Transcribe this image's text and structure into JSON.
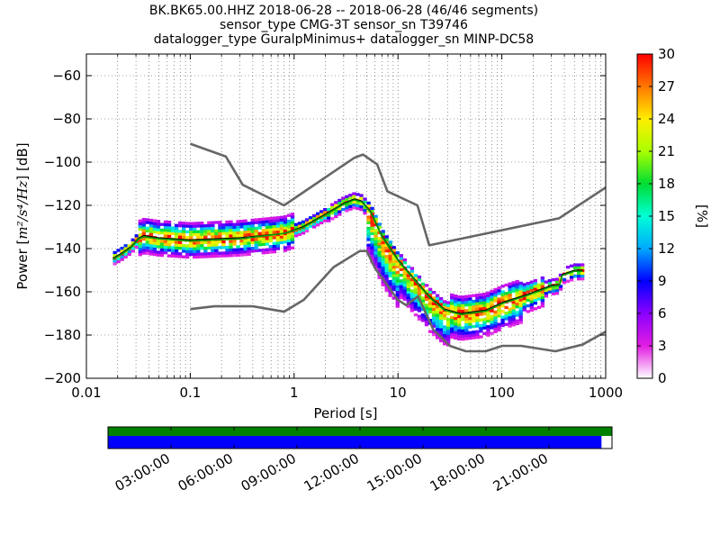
{
  "title_lines": [
    "BK.BK65.00.HHZ   2018-06-28 -- 2018-06-28  (46/46 segments)",
    "sensor_type CMG-3T sensor_sn T39746",
    "datalogger_type GuralpMinimus+ datalogger_sn MINP-DC58"
  ],
  "chart_data": [
    {
      "type": "heatmap",
      "subtype": "probabilistic-power-spectral-density",
      "xlabel": "Period [s]",
      "ylabel": "Power [m²/s⁴/Hz] [dB]",
      "ylabel_parts": {
        "prefix": "Power [",
        "math": "m²/s⁴/Hz",
        "suffix": "] [dB]"
      },
      "xscale": "log",
      "xlim": [
        0.01,
        1000
      ],
      "ylim": [
        -200,
        -50
      ],
      "xticks": [
        0.01,
        0.1,
        1,
        10,
        100,
        1000
      ],
      "xtick_labels": [
        "0.01",
        "0.1",
        "1",
        "10",
        "100",
        "1000"
      ],
      "yticks": [
        -200,
        -180,
        -160,
        -140,
        -120,
        -100,
        -80,
        -60
      ],
      "ytick_labels": [
        "−200",
        "−180",
        "−160",
        "−140",
        "−120",
        "−100",
        "−80",
        "−60"
      ],
      "grid": "dotted",
      "colorbar": {
        "label": "[%]",
        "min": 0,
        "max": 30,
        "ticks": [
          0,
          3,
          6,
          9,
          12,
          15,
          18,
          21,
          24,
          27,
          30
        ],
        "tick_labels": [
          "0",
          "3",
          "6",
          "9",
          "12",
          "15",
          "18",
          "21",
          "24",
          "27",
          "30"
        ],
        "colors": [
          "#ffffff",
          "#e21ce2",
          "#8a00ff",
          "#0000ff",
          "#00aaff",
          "#00ffd5",
          "#00dd33",
          "#aaff00",
          "#ffee00",
          "#ff7700",
          "#ff0000"
        ]
      },
      "series": [
        {
          "role": "noise-model-high",
          "color": "#666666",
          "points": [
            [
              0.1,
              -91.5
            ],
            [
              0.22,
              -97.4
            ],
            [
              0.32,
              -110.5
            ],
            [
              0.8,
              -120
            ],
            [
              3.8,
              -98
            ],
            [
              4.6,
              -96.5
            ],
            [
              6.3,
              -101
            ],
            [
              7.9,
              -113.5
            ],
            [
              15.4,
              -120
            ],
            [
              20,
              -138.5
            ],
            [
              354.8,
              -126
            ],
            [
              10000,
              -80
            ]
          ]
        },
        {
          "role": "noise-model-low",
          "color": "#666666",
          "points": [
            [
              0.1,
              -168
            ],
            [
              0.17,
              -166.7
            ],
            [
              0.4,
              -166.7
            ],
            [
              0.8,
              -169.2
            ],
            [
              1.24,
              -163.7
            ],
            [
              2.4,
              -148.6
            ],
            [
              4.3,
              -141.1
            ],
            [
              5,
              -141.1
            ],
            [
              6,
              -149
            ],
            [
              10,
              -163.8
            ],
            [
              12,
              -166.2
            ],
            [
              15.6,
              -162.1
            ],
            [
              21.9,
              -177.5
            ],
            [
              31.6,
              -185
            ],
            [
              45,
              -187.5
            ],
            [
              70,
              -187.5
            ],
            [
              101,
              -185
            ],
            [
              154,
              -185
            ],
            [
              328,
              -187.5
            ],
            [
              600,
              -184.4
            ],
            [
              10000,
              -151.5
            ]
          ]
        },
        {
          "role": "mean",
          "color": "#000000",
          "points": [
            [
              0.018,
              -144.5
            ],
            [
              0.022,
              -142
            ],
            [
              0.027,
              -139
            ],
            [
              0.032,
              -135
            ],
            [
              0.036,
              -134
            ],
            [
              0.05,
              -135
            ],
            [
              0.1,
              -136
            ],
            [
              0.3,
              -135
            ],
            [
              0.8,
              -133
            ],
            [
              1.2,
              -130
            ],
            [
              2,
              -124
            ],
            [
              3,
              -119
            ],
            [
              3.8,
              -117
            ],
            [
              4.5,
              -118
            ],
            [
              5.5,
              -123
            ],
            [
              7,
              -134
            ],
            [
              10,
              -145
            ],
            [
              15,
              -155
            ],
            [
              20,
              -162
            ],
            [
              28,
              -168
            ],
            [
              40,
              -170
            ],
            [
              70,
              -168.5
            ],
            [
              100,
              -165
            ],
            [
              180,
              -161
            ],
            [
              300,
              -157
            ],
            [
              360,
              -156.5
            ],
            [
              380,
              -152
            ],
            [
              500,
              -150
            ],
            [
              600,
              -150
            ]
          ]
        },
        {
          "role": "mode",
          "color": "#00a000",
          "points": [
            [
              0.018,
              -145
            ],
            [
              0.022,
              -142.5
            ],
            [
              0.027,
              -139.5
            ],
            [
              0.032,
              -135.5
            ],
            [
              0.036,
              -134.5
            ],
            [
              0.05,
              -135.5
            ],
            [
              0.1,
              -136.5
            ],
            [
              0.3,
              -135.5
            ],
            [
              0.8,
              -133
            ],
            [
              1.2,
              -130.5
            ],
            [
              2,
              -124.5
            ],
            [
              3,
              -119.5
            ],
            [
              3.8,
              -117.5
            ],
            [
              4.5,
              -118.5
            ],
            [
              5.5,
              -123.5
            ],
            [
              7,
              -134.5
            ],
            [
              10,
              -145.5
            ],
            [
              15,
              -155.5
            ],
            [
              20,
              -162.5
            ],
            [
              28,
              -168.5
            ],
            [
              40,
              -170.5
            ],
            [
              70,
              -169
            ],
            [
              100,
              -165.5
            ],
            [
              180,
              -161.5
            ],
            [
              300,
              -157.5
            ],
            [
              360,
              -157
            ],
            [
              380,
              -152.5
            ],
            [
              500,
              -150.5
            ],
            [
              600,
              -150.5
            ]
          ]
        }
      ]
    },
    {
      "type": "timeline",
      "tick_labels": [
        "03:00:00",
        "06:00:00",
        "09:00:00",
        "12:00:00",
        "15:00:00",
        "18:00:00",
        "21:00:00"
      ],
      "tick_hours": [
        3,
        6,
        9,
        12,
        15,
        18,
        21
      ],
      "range_hours": [
        0,
        24
      ],
      "bars": [
        {
          "role": "data-available",
          "color": "#008000",
          "start_hour": 0,
          "end_hour": 24
        },
        {
          "role": "psd-used",
          "color": "#0000ff",
          "start_hour": 0,
          "end_hour": 23.5
        }
      ]
    }
  ]
}
